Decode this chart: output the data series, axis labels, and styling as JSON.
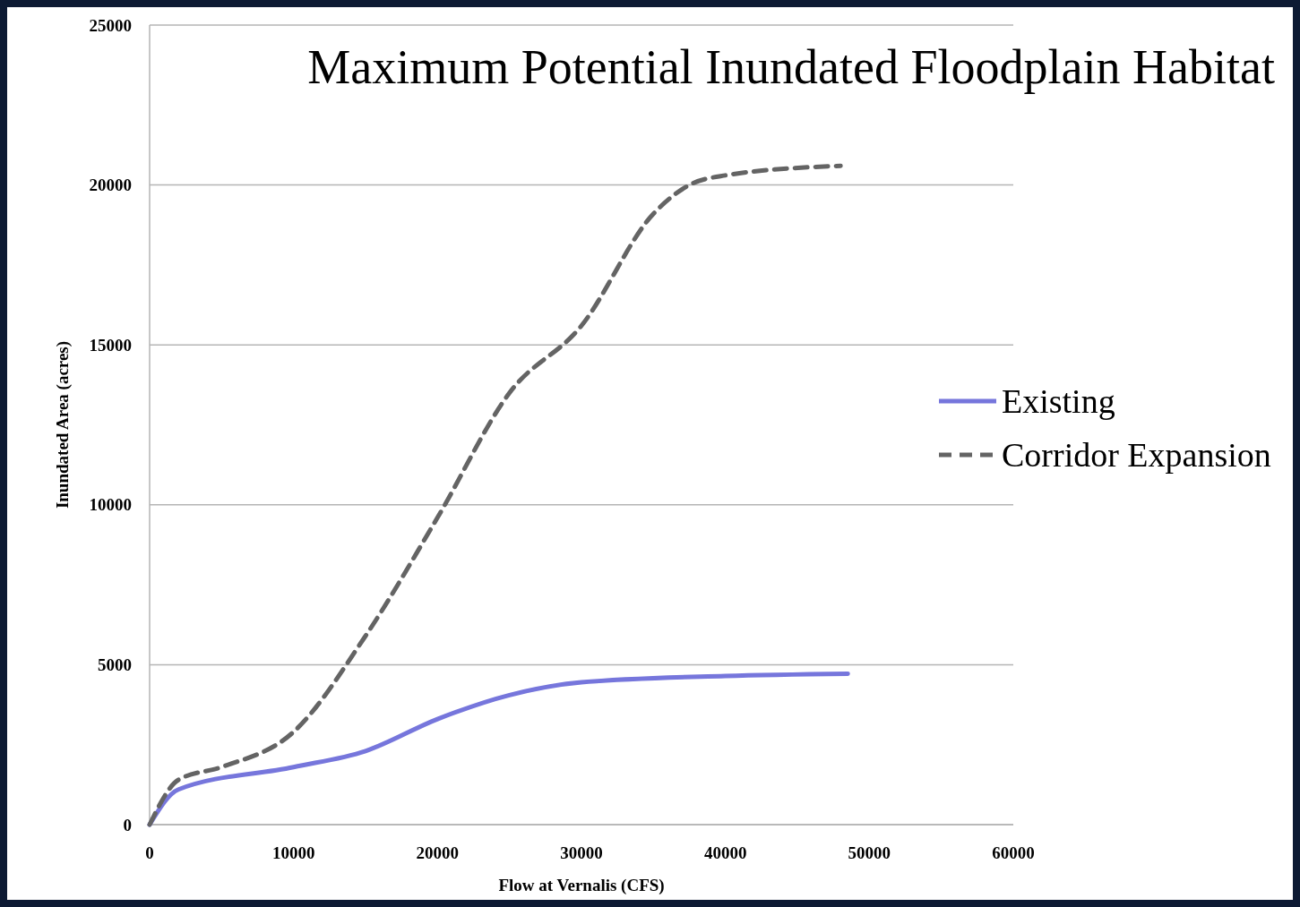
{
  "chart_data": {
    "type": "line",
    "title": "Maximum Potential Inundated Floodplain Habitat",
    "xlabel": "Flow at Vernalis (CFS)",
    "ylabel": "Inundated Area (acres)",
    "xlim": [
      0,
      60000
    ],
    "xticks": [
      0,
      10000,
      20000,
      30000,
      40000,
      50000,
      60000
    ],
    "ylim": [
      0,
      25000
    ],
    "yticks": [
      0,
      5000,
      10000,
      15000,
      20000,
      25000
    ],
    "grid": "y",
    "legend": "right",
    "series": [
      {
        "name": "Existing",
        "color": "#7676dc",
        "line_style": "solid",
        "x": [
          0,
          2000,
          10000,
          15000,
          20000,
          25000,
          30000,
          40000,
          48500
        ],
        "values": [
          0,
          1100,
          1800,
          2300,
          3300,
          4050,
          4450,
          4650,
          4720
        ]
      },
      {
        "name": "Corridor Expansion",
        "color": "#646464",
        "line_style": "dashed",
        "x": [
          0,
          2000,
          5000,
          10000,
          15000,
          20000,
          25000,
          30000,
          35000,
          37500,
          40000,
          48000
        ],
        "values": [
          0,
          1400,
          1800,
          2900,
          5900,
          9600,
          13500,
          15600,
          19100,
          20000,
          20300,
          20600
        ]
      }
    ]
  }
}
